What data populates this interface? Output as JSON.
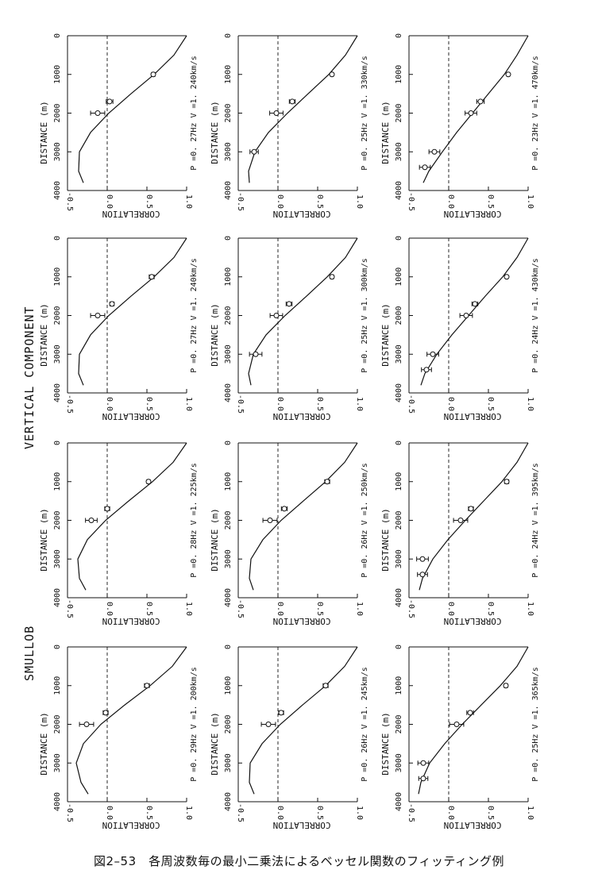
{
  "figure": {
    "title": "VERTICAL COMPONENT",
    "subtitle": "SMULLOB",
    "caption": "図2–53　各周波数毎の最小二乗法によるベッセル関数のフィッティング例",
    "axis_labels": {
      "distance": "DISTANCE (m)",
      "correlation": "CORRELATION"
    },
    "x_ticks": [
      "0",
      "1000",
      "2000",
      "3000",
      "4000"
    ],
    "y_ticks": [
      "1.0",
      "0.5",
      "0.0",
      "-0.5"
    ]
  },
  "chart_data": [
    {
      "type": "line",
      "label": "P =0. 23Hz  V =1. 470km/s",
      "xlim": [
        0,
        4000
      ],
      "ylim": [
        -0.5,
        1.0
      ],
      "fit": [
        [
          0,
          1.0
        ],
        [
          500,
          0.86
        ],
        [
          1000,
          0.7
        ],
        [
          1500,
          0.5
        ],
        [
          2000,
          0.3
        ],
        [
          2500,
          0.1
        ],
        [
          3000,
          -0.08
        ],
        [
          3500,
          -0.25
        ],
        [
          3800,
          -0.32
        ]
      ],
      "points": [
        {
          "x": 1000,
          "y": 0.75,
          "err": 30
        },
        {
          "x": 1700,
          "y": 0.4,
          "err": 90
        },
        {
          "x": 2000,
          "y": 0.28,
          "err": 140
        },
        {
          "x": 3000,
          "y": -0.18,
          "err": 130
        },
        {
          "x": 3400,
          "y": -0.3,
          "err": 130
        }
      ]
    },
    {
      "type": "line",
      "label": "P =0. 24Hz  V =1. 430km/s",
      "xlim": [
        0,
        4000
      ],
      "ylim": [
        -0.5,
        1.0
      ],
      "fit": [
        [
          0,
          1.0
        ],
        [
          500,
          0.86
        ],
        [
          1000,
          0.68
        ],
        [
          1500,
          0.46
        ],
        [
          2000,
          0.25
        ],
        [
          2500,
          0.04
        ],
        [
          3000,
          -0.15
        ],
        [
          3500,
          -0.3
        ],
        [
          3800,
          -0.35
        ]
      ],
      "points": [
        {
          "x": 1000,
          "y": 0.73,
          "err": 30
        },
        {
          "x": 1700,
          "y": 0.33,
          "err": 70
        },
        {
          "x": 2000,
          "y": 0.22,
          "err": 150
        },
        {
          "x": 3000,
          "y": -0.2,
          "err": 140
        },
        {
          "x": 3400,
          "y": -0.28,
          "err": 120
        }
      ]
    },
    {
      "type": "line",
      "label": "P =0. 24Hz  V =1. 395km/s",
      "xlim": [
        0,
        4000
      ],
      "ylim": [
        -0.5,
        1.0
      ],
      "fit": [
        [
          0,
          1.0
        ],
        [
          500,
          0.86
        ],
        [
          1000,
          0.67
        ],
        [
          1500,
          0.44
        ],
        [
          2000,
          0.21
        ],
        [
          2500,
          -0.01
        ],
        [
          3000,
          -0.2
        ],
        [
          3500,
          -0.33
        ],
        [
          3800,
          -0.37
        ]
      ],
      "points": [
        {
          "x": 1000,
          "y": 0.73,
          "err": 50
        },
        {
          "x": 1700,
          "y": 0.28,
          "err": 60
        },
        {
          "x": 2000,
          "y": 0.15,
          "err": 170
        },
        {
          "x": 3000,
          "y": -0.33,
          "err": 140
        },
        {
          "x": 3400,
          "y": -0.33,
          "err": 120
        }
      ]
    },
    {
      "type": "line",
      "label": "P =0. 25Hz  V =1. 365km/s",
      "xlim": [
        0,
        4000
      ],
      "ylim": [
        -0.5,
        1.0
      ],
      "fit": [
        [
          0,
          1.0
        ],
        [
          500,
          0.86
        ],
        [
          1000,
          0.65
        ],
        [
          1500,
          0.41
        ],
        [
          2000,
          0.17
        ],
        [
          2500,
          -0.05
        ],
        [
          3000,
          -0.24
        ],
        [
          3500,
          -0.35
        ],
        [
          3800,
          -0.38
        ]
      ],
      "points": [
        {
          "x": 1000,
          "y": 0.72,
          "err": 40
        },
        {
          "x": 1700,
          "y": 0.27,
          "err": 80
        },
        {
          "x": 2000,
          "y": 0.1,
          "err": 170
        },
        {
          "x": 3000,
          "y": -0.32,
          "err": 130
        },
        {
          "x": 3400,
          "y": -0.32,
          "err": 110
        }
      ]
    },
    {
      "type": "line",
      "label": "P =0. 25Hz  V =1. 330km/s",
      "xlim": [
        0,
        4000
      ],
      "ylim": [
        -0.5,
        1.0
      ],
      "fit": [
        [
          0,
          1.0
        ],
        [
          500,
          0.85
        ],
        [
          1000,
          0.64
        ],
        [
          1500,
          0.38
        ],
        [
          2000,
          0.12
        ],
        [
          2500,
          -0.12
        ],
        [
          3000,
          -0.29
        ],
        [
          3500,
          -0.37
        ],
        [
          3800,
          -0.36
        ]
      ],
      "points": [
        {
          "x": 1000,
          "y": 0.68,
          "err": 30
        },
        {
          "x": 1700,
          "y": 0.18,
          "err": 70
        },
        {
          "x": 2000,
          "y": -0.02,
          "err": 160
        },
        {
          "x": 3000,
          "y": -0.3,
          "err": 100
        }
      ]
    },
    {
      "type": "line",
      "label": "P =0. 25Hz  V =1. 300km/s",
      "xlim": [
        0,
        4000
      ],
      "ylim": [
        -0.5,
        1.0
      ],
      "fit": [
        [
          0,
          1.0
        ],
        [
          500,
          0.85
        ],
        [
          1000,
          0.62
        ],
        [
          1500,
          0.36
        ],
        [
          2000,
          0.09
        ],
        [
          2500,
          -0.15
        ],
        [
          3000,
          -0.31
        ],
        [
          3500,
          -0.37
        ],
        [
          3800,
          -0.34
        ]
      ],
      "points": [
        {
          "x": 1000,
          "y": 0.68,
          "err": 40
        },
        {
          "x": 1700,
          "y": 0.14,
          "err": 70
        },
        {
          "x": 2000,
          "y": -0.02,
          "err": 150
        },
        {
          "x": 3000,
          "y": -0.28,
          "err": 150
        }
      ]
    },
    {
      "type": "line",
      "label": "P =0. 26Hz  V =1. 250km/s",
      "xlim": [
        0,
        4000
      ],
      "ylim": [
        -0.5,
        1.0
      ],
      "fit": [
        [
          0,
          1.0
        ],
        [
          500,
          0.84
        ],
        [
          1000,
          0.6
        ],
        [
          1500,
          0.32
        ],
        [
          2000,
          0.04
        ],
        [
          2500,
          -0.19
        ],
        [
          3000,
          -0.34
        ],
        [
          3500,
          -0.36
        ],
        [
          3800,
          -0.31
        ]
      ],
      "points": [
        {
          "x": 1000,
          "y": 0.62,
          "err": 60
        },
        {
          "x": 1700,
          "y": 0.08,
          "err": 70
        },
        {
          "x": 2000,
          "y": -0.1,
          "err": 170
        }
      ]
    },
    {
      "type": "line",
      "label": "P =0. 26Hz  V =1. 245km/s",
      "xlim": [
        0,
        4000
      ],
      "ylim": [
        -0.5,
        1.0
      ],
      "fit": [
        [
          0,
          1.0
        ],
        [
          500,
          0.84
        ],
        [
          1000,
          0.6
        ],
        [
          1500,
          0.31
        ],
        [
          2000,
          0.03
        ],
        [
          2500,
          -0.2
        ],
        [
          3000,
          -0.35
        ],
        [
          3500,
          -0.36
        ],
        [
          3800,
          -0.3
        ]
      ],
      "points": [
        {
          "x": 1000,
          "y": 0.6,
          "err": 60
        },
        {
          "x": 1700,
          "y": 0.04,
          "err": 60
        },
        {
          "x": 2000,
          "y": -0.12,
          "err": 170
        }
      ]
    },
    {
      "type": "line",
      "label": "P =0. 27Hz  V =1. 240km/s",
      "xlim": [
        0,
        4000
      ],
      "ylim": [
        -0.5,
        1.0
      ],
      "fit": [
        [
          0,
          1.0
        ],
        [
          500,
          0.84
        ],
        [
          1000,
          0.59
        ],
        [
          1500,
          0.3
        ],
        [
          2000,
          0.02
        ],
        [
          2500,
          -0.21
        ],
        [
          3000,
          -0.35
        ],
        [
          3500,
          -0.36
        ],
        [
          3800,
          -0.3
        ]
      ],
      "points": [
        {
          "x": 1000,
          "y": 0.58,
          "err": 40
        },
        {
          "x": 1700,
          "y": 0.03,
          "err": 80
        },
        {
          "x": 2000,
          "y": -0.12,
          "err": 170
        }
      ]
    },
    {
      "type": "line",
      "label": "P =0. 27Hz  V =1. 240km/s",
      "xlim": [
        0,
        4000
      ],
      "ylim": [
        -0.5,
        1.0
      ],
      "fit": [
        [
          0,
          1.0
        ],
        [
          500,
          0.84
        ],
        [
          1000,
          0.59
        ],
        [
          1500,
          0.3
        ],
        [
          2000,
          0.02
        ],
        [
          2500,
          -0.21
        ],
        [
          3000,
          -0.35
        ],
        [
          3500,
          -0.36
        ],
        [
          3800,
          -0.3
        ]
      ],
      "points": [
        {
          "x": 1000,
          "y": 0.56,
          "err": 60
        },
        {
          "x": 1700,
          "y": 0.06,
          "err": 50
        },
        {
          "x": 2000,
          "y": -0.12,
          "err": 170
        }
      ]
    },
    {
      "type": "line",
      "label": "P =0. 28Hz  V =1. 225km/s",
      "xlim": [
        0,
        4000
      ],
      "ylim": [
        -0.5,
        1.0
      ],
      "fit": [
        [
          0,
          1.0
        ],
        [
          500,
          0.83
        ],
        [
          1000,
          0.57
        ],
        [
          1500,
          0.27
        ],
        [
          2000,
          -0.02
        ],
        [
          2500,
          -0.25
        ],
        [
          3000,
          -0.37
        ],
        [
          3500,
          -0.35
        ],
        [
          3800,
          -0.27
        ]
      ],
      "points": [
        {
          "x": 1000,
          "y": 0.52,
          "err": 40
        },
        {
          "x": 1700,
          "y": 0.0,
          "err": 60
        },
        {
          "x": 2000,
          "y": -0.2,
          "err": 140
        }
      ]
    },
    {
      "type": "line",
      "label": "P =0. 29Hz  V =1. 200km/s",
      "xlim": [
        0,
        4000
      ],
      "ylim": [
        -0.5,
        1.0
      ],
      "fit": [
        [
          0,
          1.0
        ],
        [
          500,
          0.82
        ],
        [
          1000,
          0.54
        ],
        [
          1500,
          0.22
        ],
        [
          2000,
          -0.08
        ],
        [
          2500,
          -0.3
        ],
        [
          3000,
          -0.39
        ],
        [
          3500,
          -0.33
        ],
        [
          3800,
          -0.24
        ]
      ],
      "points": [
        {
          "x": 1000,
          "y": 0.5,
          "err": 60
        },
        {
          "x": 1700,
          "y": -0.02,
          "err": 60
        },
        {
          "x": 2000,
          "y": -0.26,
          "err": 170
        }
      ]
    }
  ]
}
